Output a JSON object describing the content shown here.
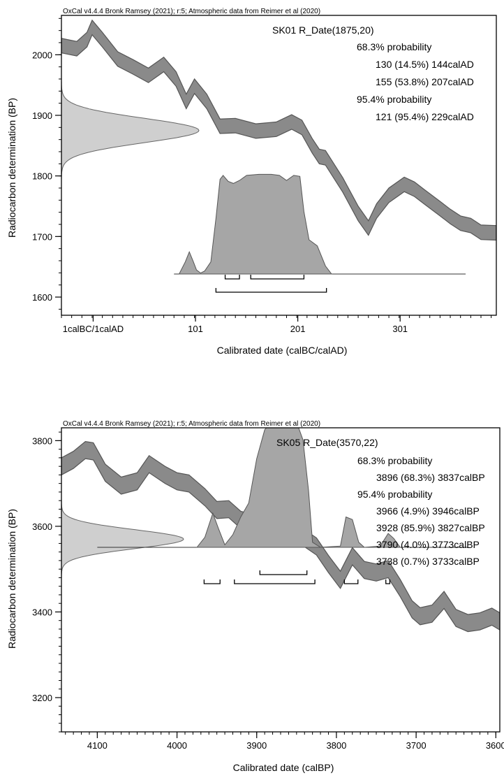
{
  "chart_data": [
    {
      "type": "area",
      "header": "OxCal v4.4.4 Bronk Ramsey (2021); r:5; Atmospheric data from Reimer et al (2020)",
      "sample": "SK01 R_Date(1875,20)",
      "summary": [
        "68.3% probability",
        "130 (14.5%) 144calAD",
        "155 (53.8%) 207calAD",
        "95.4% probability",
        "121 (95.4%) 229calAD"
      ],
      "xlabel": "Calibrated date (calBC/calAD)",
      "ylabel": "Radiocarbon determination (BP)",
      "x_axis": {
        "range": [
          -30,
          395
        ],
        "reversed": false,
        "ticks": [
          1,
          101,
          201,
          301
        ],
        "tick_labels": [
          "1calBC/1calAD",
          "101",
          "201",
          "301"
        ],
        "minor_step": 10
      },
      "y_axis": {
        "range": [
          1570,
          2065
        ],
        "ticks": [
          1600,
          1700,
          1800,
          1900,
          2000
        ],
        "tick_labels": [
          "1600",
          "1700",
          "1800",
          "1900",
          "2000"
        ],
        "minor_step": 20
      },
      "curve": {
        "x": [
          -30,
          -15,
          -5,
          0,
          10,
          25,
          40,
          55,
          70,
          82,
          92,
          100,
          112,
          125,
          140,
          160,
          180,
          195,
          205,
          215,
          222,
          228,
          245,
          260,
          270,
          278,
          290,
          305,
          315,
          325,
          340,
          350,
          360,
          370,
          380,
          395
        ],
        "y": [
          2015,
          2010,
          2025,
          2045,
          2025,
          1993,
          1980,
          1966,
          1984,
          1960,
          1923,
          1948,
          1923,
          1882,
          1883,
          1874,
          1877,
          1889,
          1880,
          1850,
          1832,
          1830,
          1785,
          1738,
          1714,
          1742,
          1768,
          1786,
          1778,
          1765,
          1746,
          1733,
          1722,
          1718,
          1707,
          1706
        ],
        "halfwidth": 12
      },
      "radiocarbon_date": {
        "mean": 1875,
        "sigma": 20
      },
      "posterior": {
        "x": [
          85,
          91,
          95,
          99,
          102,
          106,
          110,
          116,
          121,
          125,
          128,
          133,
          138,
          144,
          151,
          163,
          175,
          183,
          190,
          197,
          203,
          207,
          212,
          220,
          228,
          234
        ],
        "p": [
          0,
          0.12,
          0.22,
          0.12,
          0.04,
          0.01,
          0.03,
          0.12,
          0.55,
          0.94,
          0.98,
          0.92,
          0.9,
          0.93,
          0.98,
          0.99,
          0.99,
          0.98,
          0.93,
          0.98,
          0.97,
          0.62,
          0.34,
          0.28,
          0.08,
          0
        ]
      },
      "posterior_range": [
        80,
        365
      ],
      "ranges_68": [
        [
          130,
          144
        ],
        [
          155,
          207
        ]
      ],
      "ranges_95": [
        [
          121,
          229
        ]
      ]
    },
    {
      "type": "area",
      "header": "OxCal v4.4.4 Bronk Ramsey (2021); r:5; Atmospheric data from Reimer et al (2020)",
      "sample": "SK05 R_Date(3570,22)",
      "summary": [
        "68.3% probability",
        "3896 (68.3%) 3837calBP",
        "95.4% probability",
        "3966 (4.9%) 3946calBP",
        "3928 (85.9%) 3827calBP",
        "3790 (4.0%) 3773calBP",
        "3738 (0.7%) 3733calBP"
      ],
      "xlabel": "Calibrated date (calBP)",
      "ylabel": "Radiocarbon determination (BP)",
      "x_axis": {
        "range": [
          4145,
          3595
        ],
        "reversed": true,
        "ticks": [
          4100,
          4000,
          3900,
          3800,
          3700,
          3600
        ],
        "tick_labels": [
          "4100",
          "4000",
          "3900",
          "3800",
          "3700",
          "3600"
        ],
        "minor_step": 10
      },
      "y_axis": {
        "range": [
          3120,
          3830
        ],
        "ticks": [
          3200,
          3400,
          3600,
          3800
        ],
        "tick_labels": [
          "3200",
          "3400",
          "3600",
          "3800"
        ],
        "minor_step": 20
      },
      "curve": {
        "x": [
          4145,
          4130,
          4115,
          4105,
          4090,
          4070,
          4050,
          4035,
          4015,
          4000,
          3985,
          3965,
          3950,
          3935,
          3920,
          3905,
          3890,
          3870,
          3855,
          3840,
          3825,
          3810,
          3795,
          3780,
          3765,
          3750,
          3735,
          3720,
          3705,
          3695,
          3680,
          3665,
          3650,
          3635,
          3620,
          3605,
          3595
        ],
        "y": [
          3740,
          3755,
          3778,
          3775,
          3725,
          3695,
          3705,
          3745,
          3720,
          3705,
          3700,
          3668,
          3638,
          3640,
          3615,
          3608,
          3597,
          3586,
          3585,
          3572,
          3553,
          3512,
          3475,
          3530,
          3498,
          3492,
          3500,
          3456,
          3406,
          3390,
          3396,
          3428,
          3386,
          3374,
          3378,
          3389,
          3378
        ],
        "halfwidth": 20
      },
      "radiocarbon_date": {
        "mean": 3570,
        "sigma": 22
      },
      "posterior": {
        "x": [
          3975,
          3965,
          3955,
          3948,
          3940,
          3930,
          3920,
          3910,
          3900,
          3890,
          3880,
          3870,
          3860,
          3850,
          3842,
          3835,
          3830,
          3820,
          3795,
          3788,
          3780,
          3772,
          3765,
          3745,
          3735,
          3728,
          3720
        ],
        "p": [
          0,
          0.08,
          0.27,
          0.15,
          0.02,
          0.1,
          0.24,
          0.35,
          0.7,
          0.93,
          1,
          0.96,
          0.99,
          0.99,
          0.85,
          0.45,
          0.04,
          0,
          0.01,
          0.24,
          0.22,
          0.04,
          0,
          0.01,
          0.11,
          0.07,
          0
        ]
      },
      "posterior_range": [
        4100,
        3635
      ],
      "ranges_68": [
        [
          3896,
          3837
        ]
      ],
      "ranges_95": [
        [
          3966,
          3946
        ],
        [
          3928,
          3827
        ],
        [
          3790,
          3773
        ],
        [
          3738,
          3733
        ]
      ]
    }
  ]
}
